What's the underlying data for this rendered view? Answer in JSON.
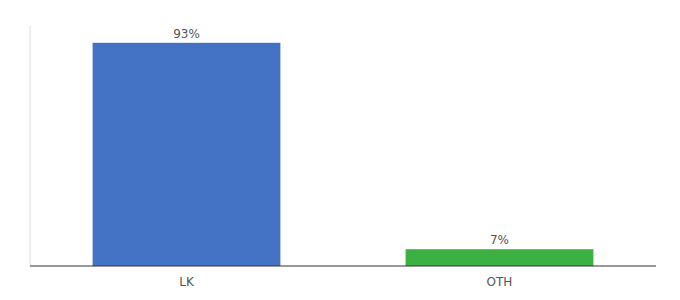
{
  "chart_data": {
    "type": "bar",
    "categories": [
      "LK",
      "OTH"
    ],
    "values": [
      93,
      7
    ],
    "value_labels": [
      "93%",
      "7%"
    ],
    "colors": [
      "#4472c4",
      "#3cb043"
    ],
    "ylim": [
      0,
      100
    ],
    "data_labels": true,
    "tick_labels": "x",
    "grid": false
  }
}
